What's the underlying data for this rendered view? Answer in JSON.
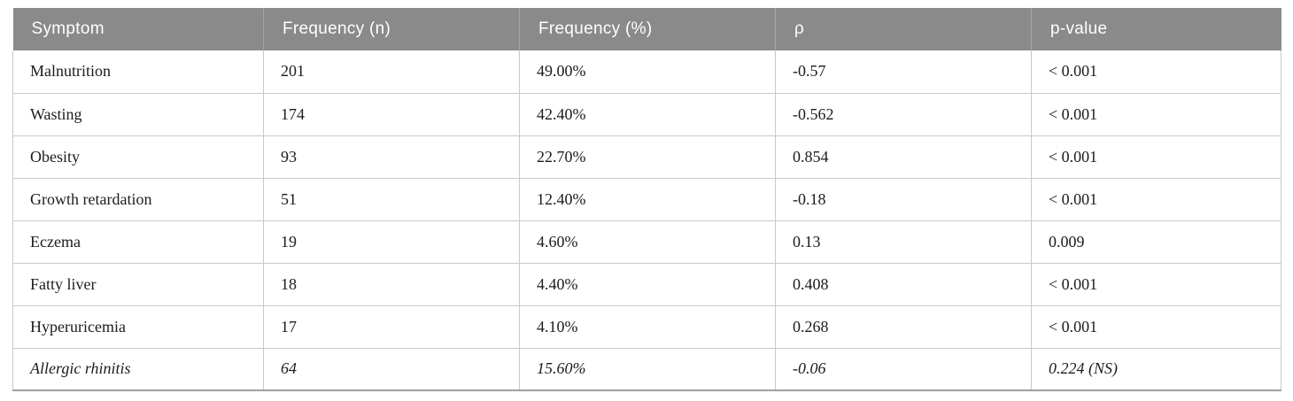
{
  "table": {
    "headers": [
      "Symptom",
      "Frequency (n)",
      "Frequency (%)",
      "ρ",
      "p-value"
    ],
    "rows": [
      {
        "cells": [
          "Malnutrition",
          "201",
          "49.00%",
          "-0.57",
          "< 0.001"
        ],
        "italic": false
      },
      {
        "cells": [
          "Wasting",
          "174",
          "42.40%",
          "-0.562",
          "< 0.001"
        ],
        "italic": false
      },
      {
        "cells": [
          "Obesity",
          "93",
          "22.70%",
          "0.854",
          "< 0.001"
        ],
        "italic": false
      },
      {
        "cells": [
          "Growth retardation",
          "51",
          "12.40%",
          "-0.18",
          "< 0.001"
        ],
        "italic": false
      },
      {
        "cells": [
          "Eczema",
          "19",
          "4.60%",
          "0.13",
          "0.009"
        ],
        "italic": false
      },
      {
        "cells": [
          "Fatty liver",
          "18",
          "4.40%",
          "0.408",
          "< 0.001"
        ],
        "italic": false
      },
      {
        "cells": [
          "Hyperuricemia",
          "17",
          "4.10%",
          "0.268",
          "< 0.001"
        ],
        "italic": false
      },
      {
        "cells": [
          "Allergic rhinitis",
          "64",
          "15.60%",
          "-0.06",
          "0.224 (NS)"
        ],
        "italic": true
      }
    ],
    "colors": {
      "header_bg": "#8a8a8a",
      "header_text": "#ffffff",
      "header_divider": "#a5a5a5",
      "body_text": "#1c1c1c",
      "cell_border": "#c9c9c9",
      "bottom_border": "#9f9f9f",
      "page_bg": "#ffffff"
    }
  },
  "chart_data": {
    "type": "table",
    "title": "",
    "columns": [
      "Symptom",
      "Frequency (n)",
      "Frequency (%)",
      "ρ",
      "p-value"
    ],
    "rows": [
      [
        "Malnutrition",
        201,
        "49.00%",
        -0.57,
        "< 0.001"
      ],
      [
        "Wasting",
        174,
        "42.40%",
        -0.562,
        "< 0.001"
      ],
      [
        "Obesity",
        93,
        "22.70%",
        0.854,
        "< 0.001"
      ],
      [
        "Growth retardation",
        51,
        "12.40%",
        -0.18,
        "< 0.001"
      ],
      [
        "Eczema",
        19,
        "4.60%",
        0.13,
        "0.009"
      ],
      [
        "Fatty liver",
        18,
        "4.40%",
        0.408,
        "< 0.001"
      ],
      [
        "Hyperuricemia",
        17,
        "4.10%",
        0.268,
        "< 0.001"
      ],
      [
        "Allergic rhinitis",
        64,
        "15.60%",
        -0.06,
        "0.224 (NS)"
      ]
    ]
  }
}
